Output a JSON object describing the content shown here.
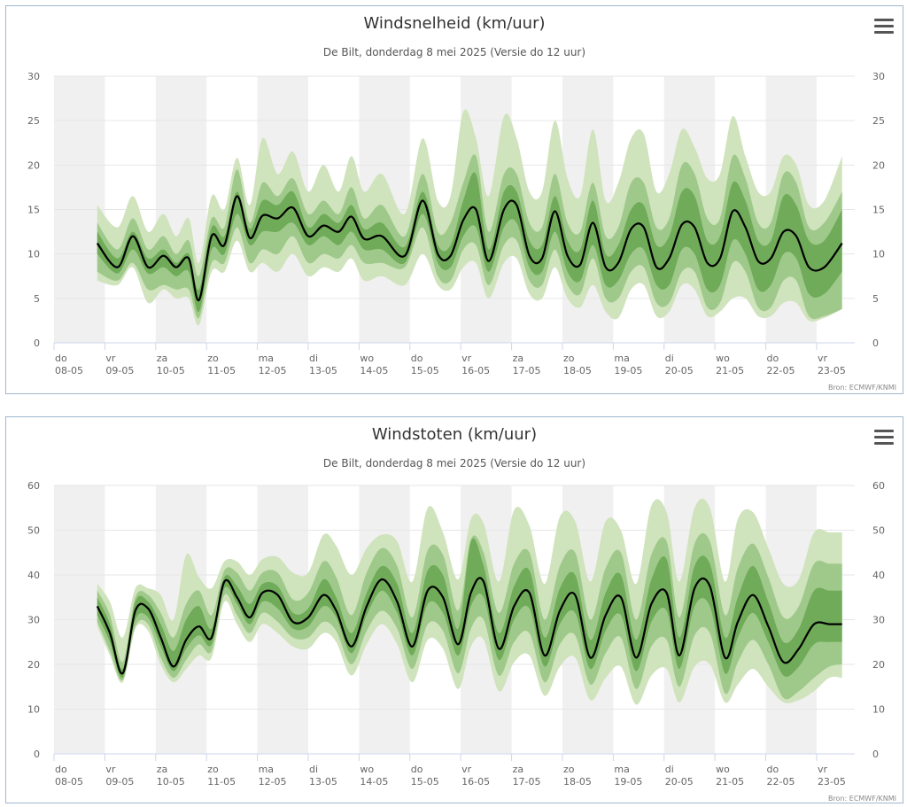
{
  "source_label": "Bron: ECMWF/KNMI",
  "menu_icon": "hamburger-menu-icon",
  "colors": {
    "band_outer": "#cfe3bc",
    "band_mid": "#9fc98a",
    "band_inner": "#6fab58",
    "median_line": "#000000",
    "weekend_shade": "#f0f0f0",
    "grid": "#e6e6e6",
    "panel_border": "#9fb7cf"
  },
  "x_ticks": [
    {
      "day": "do",
      "date": "08-05"
    },
    {
      "day": "vr",
      "date": "09-05"
    },
    {
      "day": "za",
      "date": "10-05"
    },
    {
      "day": "zo",
      "date": "11-05"
    },
    {
      "day": "ma",
      "date": "12-05"
    },
    {
      "day": "di",
      "date": "13-05"
    },
    {
      "day": "wo",
      "date": "14-05"
    },
    {
      "day": "do",
      "date": "15-05"
    },
    {
      "day": "vr",
      "date": "16-05"
    },
    {
      "day": "za",
      "date": "17-05"
    },
    {
      "day": "zo",
      "date": "18-05"
    },
    {
      "day": "ma",
      "date": "19-05"
    },
    {
      "day": "di",
      "date": "20-05"
    },
    {
      "day": "wo",
      "date": "21-05"
    },
    {
      "day": "do",
      "date": "22-05"
    },
    {
      "day": "vr",
      "date": "23-05"
    }
  ],
  "chart_data": [
    {
      "type": "area",
      "title": "Windsnelheid (km/uur)",
      "subtitle": "De Bilt, donderdag 8 mei 2025 (Versie do 12 uur)",
      "x_unit": "days since 08-05 00:00",
      "ylim": [
        0,
        30
      ],
      "y_ticks": [
        0,
        5,
        10,
        15,
        20,
        25,
        30
      ],
      "grid": true,
      "shaded_days": [
        0,
        2,
        4,
        6,
        8,
        10,
        12,
        14
      ],
      "x": [
        0.85,
        1.25,
        1.55,
        1.85,
        2.15,
        2.4,
        2.65,
        2.85,
        3.1,
        3.35,
        3.6,
        3.85,
        4.1,
        4.4,
        4.7,
        5.0,
        5.3,
        5.6,
        5.85,
        6.1,
        6.45,
        6.9,
        7.25,
        7.55,
        7.8,
        8.05,
        8.3,
        8.55,
        8.85,
        9.1,
        9.35,
        9.6,
        9.85,
        10.1,
        10.35,
        10.6,
        10.85,
        11.1,
        11.35,
        11.6,
        11.85,
        12.1,
        12.35,
        12.6,
        12.85,
        13.1,
        13.35,
        13.6,
        13.85,
        14.1,
        14.35,
        14.6,
        14.85,
        15.15,
        15.5
      ],
      "median": [
        11.2,
        8.5,
        12.0,
        8.5,
        9.8,
        8.5,
        9.5,
        4.8,
        12.0,
        11.0,
        16.5,
        11.8,
        14.3,
        14.0,
        15.2,
        12.0,
        13.2,
        12.5,
        14.2,
        11.7,
        12.0,
        9.8,
        16.0,
        10.0,
        9.8,
        13.8,
        15.0,
        9.2,
        15.0,
        15.5,
        9.8,
        9.5,
        14.8,
        9.8,
        8.8,
        13.5,
        8.5,
        9.0,
        12.8,
        13.0,
        8.5,
        9.5,
        13.3,
        13.0,
        9.0,
        9.5,
        14.8,
        13.0,
        9.2,
        9.5,
        12.5,
        12.0,
        8.5,
        8.5,
        11.2
      ],
      "band_inner_low": [
        10.0,
        7.8,
        10.5,
        7.8,
        8.5,
        7.5,
        8.0,
        3.5,
        10.5,
        10.0,
        14.5,
        11.0,
        12.5,
        12.5,
        13.5,
        11.0,
        12.0,
        11.0,
        12.5,
        10.5,
        10.5,
        9.0,
        14.5,
        9.0,
        8.5,
        12.0,
        13.0,
        8.0,
        13.0,
        13.5,
        8.5,
        8.0,
        12.5,
        8.0,
        7.0,
        11.0,
        6.5,
        7.0,
        10.0,
        10.5,
        6.5,
        6.5,
        10.5,
        10.0,
        6.0,
        6.5,
        11.5,
        10.0,
        6.0,
        6.5,
        10.0,
        9.5,
        5.5,
        5.5,
        8.0
      ],
      "band_inner_high": [
        12.5,
        9.5,
        12.5,
        9.5,
        10.5,
        9.0,
        10.0,
        6.0,
        13.0,
        12.0,
        17.0,
        12.8,
        16.0,
        15.5,
        17.0,
        13.0,
        14.5,
        13.5,
        15.5,
        12.8,
        13.5,
        10.8,
        17.0,
        11.0,
        11.0,
        16.0,
        19.0,
        10.5,
        17.0,
        17.0,
        11.5,
        11.0,
        16.5,
        11.5,
        10.5,
        16.0,
        10.0,
        11.0,
        15.0,
        15.5,
        11.0,
        12.0,
        17.0,
        16.5,
        11.5,
        12.0,
        18.0,
        16.0,
        11.5,
        11.5,
        16.5,
        15.5,
        11.5,
        11.5,
        15.0
      ],
      "band_mid_low": [
        8.0,
        7.0,
        9.0,
        6.0,
        6.5,
        6.0,
        6.0,
        2.8,
        9.0,
        9.0,
        13.0,
        9.0,
        10.5,
        10.0,
        12.0,
        9.0,
        10.0,
        9.5,
        11.0,
        9.0,
        9.0,
        8.5,
        13.0,
        7.5,
        7.0,
        10.5,
        11.0,
        6.5,
        11.0,
        11.5,
        7.0,
        6.5,
        10.5,
        6.5,
        5.5,
        9.5,
        5.0,
        5.0,
        8.0,
        8.5,
        4.5,
        4.5,
        8.0,
        8.0,
        4.0,
        4.5,
        9.0,
        8.0,
        4.0,
        4.0,
        7.0,
        7.0,
        3.0,
        3.0,
        3.8
      ],
      "band_mid_high": [
        13.5,
        10.5,
        14.0,
        10.5,
        12.0,
        10.0,
        11.5,
        7.5,
        14.0,
        13.0,
        19.5,
        13.5,
        18.0,
        16.5,
        18.5,
        14.5,
        16.0,
        14.5,
        17.5,
        14.0,
        15.5,
        12.0,
        19.0,
        12.5,
        13.5,
        18.0,
        21.0,
        12.5,
        19.0,
        19.0,
        13.5,
        13.0,
        19.0,
        13.5,
        12.5,
        18.0,
        12.0,
        13.0,
        18.0,
        18.0,
        13.0,
        14.0,
        20.0,
        19.0,
        14.0,
        14.0,
        21.0,
        18.5,
        13.5,
        13.5,
        19.0,
        18.0,
        13.0,
        13.5,
        17.0
      ],
      "band_outer_low": [
        7.0,
        6.5,
        8.5,
        4.5,
        6.0,
        5.0,
        5.0,
        2.0,
        8.0,
        8.0,
        11.5,
        8.0,
        9.0,
        8.0,
        10.0,
        7.5,
        8.5,
        8.0,
        9.5,
        7.0,
        7.5,
        6.5,
        10.0,
        6.5,
        6.0,
        8.5,
        9.0,
        5.0,
        9.0,
        9.5,
        5.5,
        5.0,
        8.5,
        5.0,
        4.0,
        6.5,
        3.5,
        2.8,
        6.0,
        6.5,
        3.0,
        3.5,
        6.5,
        6.0,
        3.0,
        3.5,
        5.0,
        5.0,
        3.0,
        3.0,
        4.5,
        4.5,
        2.5,
        2.8,
        3.8
      ],
      "band_outer_high": [
        15.5,
        13.0,
        16.5,
        12.5,
        14.5,
        12.0,
        14.0,
        9.0,
        16.5,
        15.0,
        20.8,
        15.5,
        23.0,
        19.0,
        21.5,
        17.0,
        20.0,
        17.0,
        21.0,
        17.0,
        19.0,
        14.5,
        23.0,
        16.0,
        16.5,
        26.0,
        23.0,
        16.5,
        25.5,
        23.0,
        17.0,
        17.0,
        25.0,
        18.5,
        16.5,
        24.0,
        16.0,
        18.0,
        23.0,
        23.5,
        17.0,
        19.0,
        24.0,
        22.0,
        18.5,
        19.0,
        25.5,
        21.0,
        17.0,
        17.0,
        21.0,
        20.0,
        15.5,
        16.0,
        21.0
      ]
    },
    {
      "type": "area",
      "title": "Windstoten (km/uur)",
      "subtitle": "De Bilt, donderdag 8 mei 2025 (Versie do 12 uur)",
      "x_unit": "days since 08-05 00:00",
      "ylim": [
        0,
        60
      ],
      "y_ticks": [
        0,
        10,
        20,
        30,
        40,
        50,
        60
      ],
      "grid": true,
      "shaded_days": [
        0,
        2,
        4,
        6,
        8,
        10,
        12,
        14
      ],
      "x": [
        0.85,
        1.1,
        1.35,
        1.6,
        1.85,
        2.1,
        2.35,
        2.6,
        2.85,
        3.1,
        3.35,
        3.6,
        3.85,
        4.1,
        4.4,
        4.7,
        5.0,
        5.3,
        5.55,
        5.85,
        6.15,
        6.45,
        6.75,
        7.05,
        7.35,
        7.65,
        7.95,
        8.2,
        8.45,
        8.75,
        9.05,
        9.35,
        9.65,
        9.95,
        10.25,
        10.55,
        10.85,
        11.15,
        11.45,
        11.75,
        12.05,
        12.3,
        12.6,
        12.9,
        13.2,
        13.45,
        13.75,
        14.05,
        14.35,
        14.65,
        14.95,
        15.25,
        15.5
      ],
      "median": [
        33.0,
        27.0,
        18.0,
        32.0,
        32.5,
        26.0,
        19.5,
        25.5,
        28.5,
        26.0,
        38.5,
        35.0,
        30.5,
        36.0,
        35.5,
        29.5,
        30.5,
        35.5,
        32.0,
        24.0,
        33.0,
        39.0,
        34.0,
        24.0,
        36.5,
        35.0,
        24.5,
        36.0,
        38.5,
        23.5,
        33.0,
        36.0,
        22.0,
        32.0,
        35.5,
        21.5,
        31.0,
        35.0,
        21.5,
        33.5,
        36.0,
        22.0,
        37.0,
        37.5,
        21.5,
        29.5,
        35.5,
        28.5,
        20.5,
        23.5,
        29.0,
        29.0,
        29.0
      ],
      "band_inner_low": [
        31.0,
        25.0,
        17.0,
        30.0,
        30.5,
        24.0,
        18.5,
        23.5,
        26.5,
        24.5,
        37.0,
        33.5,
        29.0,
        34.0,
        32.5,
        28.0,
        28.5,
        33.0,
        30.5,
        22.5,
        31.0,
        36.5,
        31.5,
        22.0,
        33.5,
        31.5,
        22.0,
        33.0,
        35.0,
        21.0,
        30.0,
        32.5,
        19.5,
        29.0,
        31.5,
        19.0,
        27.5,
        31.0,
        18.5,
        29.5,
        32.0,
        19.0,
        33.0,
        33.0,
        18.0,
        26.0,
        31.5,
        25.0,
        17.5,
        19.5,
        24.5,
        25.0,
        25.0
      ],
      "band_inner_high": [
        35.0,
        29.0,
        19.0,
        34.0,
        34.0,
        29.0,
        23.0,
        30.0,
        33.0,
        28.0,
        39.5,
        37.5,
        33.5,
        38.0,
        37.5,
        31.5,
        32.5,
        39.0,
        35.0,
        27.0,
        36.0,
        42.0,
        38.0,
        27.0,
        41.0,
        40.0,
        28.0,
        47.5,
        42.0,
        27.0,
        37.5,
        41.0,
        26.0,
        37.0,
        40.0,
        25.5,
        36.0,
        40.0,
        25.5,
        39.0,
        43.5,
        26.0,
        42.0,
        42.5,
        26.0,
        35.0,
        42.0,
        34.0,
        25.0,
        28.0,
        36.5,
        36.5,
        36.5
      ],
      "band_mid_low": [
        29.5,
        23.0,
        16.5,
        28.5,
        29.0,
        21.5,
        17.0,
        21.0,
        24.5,
        23.0,
        35.5,
        31.0,
        27.0,
        31.5,
        29.5,
        26.0,
        26.0,
        29.5,
        27.5,
        20.0,
        27.5,
        32.0,
        28.0,
        19.0,
        29.0,
        27.5,
        18.0,
        28.0,
        30.0,
        17.5,
        25.0,
        27.0,
        16.0,
        24.5,
        26.5,
        15.5,
        22.5,
        26.0,
        14.5,
        24.0,
        25.5,
        15.0,
        26.5,
        27.0,
        13.5,
        20.5,
        25.5,
        20.0,
        12.5,
        14.0,
        17.0,
        19.5,
        20.0
      ],
      "band_mid_high": [
        36.5,
        31.0,
        20.5,
        35.0,
        35.5,
        31.5,
        26.0,
        33.5,
        36.5,
        31.0,
        41.0,
        40.5,
        36.5,
        40.5,
        40.5,
        34.5,
        36.0,
        43.0,
        39.5,
        31.0,
        40.5,
        46.0,
        42.0,
        30.5,
        45.5,
        44.5,
        32.0,
        48.0,
        45.0,
        31.5,
        42.5,
        45.0,
        30.0,
        42.0,
        45.0,
        30.0,
        41.5,
        45.0,
        30.0,
        44.5,
        47.5,
        30.5,
        47.0,
        47.5,
        31.0,
        41.5,
        47.0,
        39.5,
        30.5,
        33.0,
        42.5,
        42.5,
        42.5
      ],
      "band_outer_low": [
        28.5,
        22.0,
        16.0,
        28.0,
        27.5,
        20.0,
        16.0,
        19.0,
        22.0,
        21.5,
        34.0,
        29.0,
        25.0,
        29.0,
        27.0,
        24.0,
        23.5,
        27.0,
        25.0,
        17.5,
        24.5,
        29.0,
        24.5,
        16.0,
        25.5,
        23.5,
        14.5,
        24.0,
        25.5,
        14.0,
        20.5,
        22.0,
        13.0,
        19.5,
        21.5,
        12.0,
        17.0,
        19.5,
        11.0,
        17.5,
        19.0,
        11.5,
        19.5,
        20.0,
        11.5,
        15.5,
        19.0,
        15.0,
        11.5,
        12.0,
        14.0,
        17.0,
        17.0
      ],
      "band_outer_high": [
        38.0,
        34.0,
        26.0,
        37.0,
        37.0,
        35.5,
        30.0,
        44.5,
        39.5,
        37.0,
        43.0,
        43.0,
        40.0,
        43.5,
        44.0,
        40.5,
        40.5,
        49.0,
        46.5,
        40.0,
        46.0,
        49.0,
        47.5,
        38.5,
        55.0,
        49.5,
        39.0,
        52.5,
        51.5,
        38.5,
        54.5,
        51.0,
        38.0,
        53.0,
        52.0,
        38.5,
        52.0,
        50.0,
        38.0,
        55.5,
        54.0,
        38.5,
        55.0,
        55.0,
        38.5,
        52.5,
        54.0,
        46.0,
        38.0,
        39.0,
        49.5,
        49.5,
        49.5
      ]
    }
  ]
}
